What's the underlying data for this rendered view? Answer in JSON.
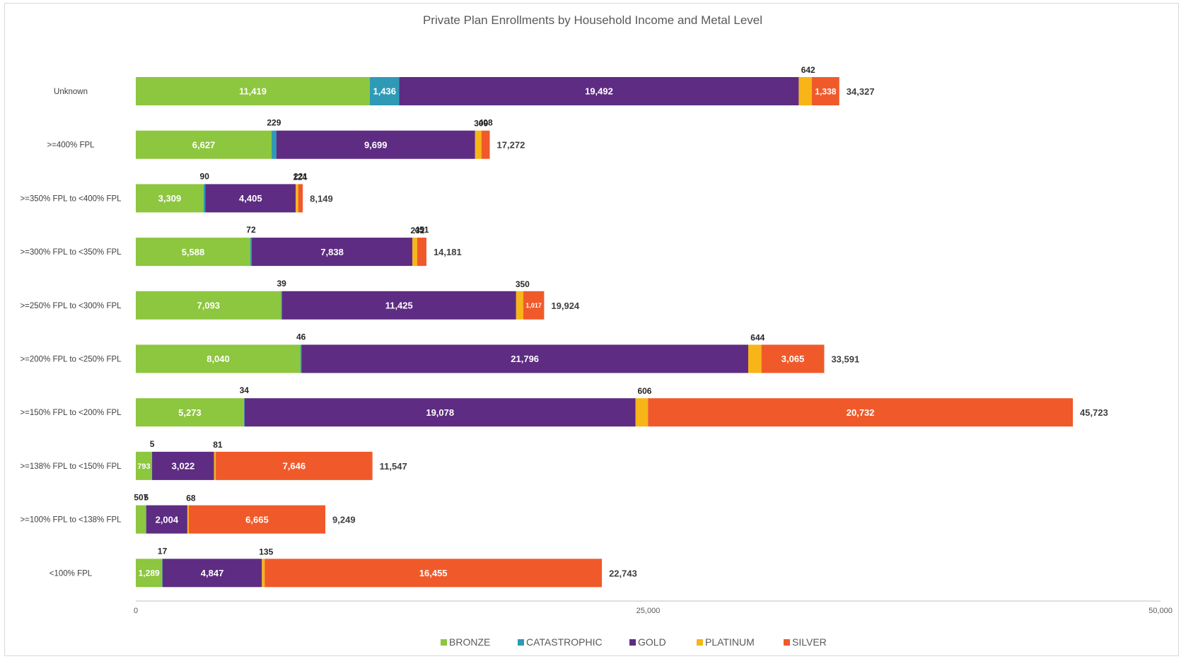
{
  "chart_data": {
    "type": "bar",
    "orientation": "horizontal",
    "stacked": true,
    "title": "Private Plan Enrollments by Household Income and Metal Level",
    "categories": [
      "Unknown",
      ">=400% FPL",
      ">=350% FPL to <400% FPL",
      ">=300% FPL to <350% FPL",
      ">=250% FPL to <300% FPL",
      ">=200% FPL to <250% FPL",
      ">=150% FPL to <200% FPL",
      ">=138% FPL to <150% FPL",
      ">=100% FPL to <138% FPL",
      "<100% FPL"
    ],
    "series": [
      {
        "name": "BRONZE",
        "color": "#8DC63F",
        "values": [
          11419,
          6627,
          3309,
          5588,
          7093,
          8040,
          5273,
          793,
          507,
          1289
        ],
        "labels": [
          "11,419",
          "6,627",
          "3,309",
          "5,588",
          "7,093",
          "8,040",
          "5,273",
          "793",
          "507",
          "1,289"
        ]
      },
      {
        "name": "CATASTROPHIC",
        "color": "#2E9AB5",
        "values": [
          1436,
          229,
          90,
          72,
          39,
          46,
          34,
          5,
          5,
          17
        ],
        "labels": [
          "1,436",
          "229",
          "90",
          "72",
          "39",
          "46",
          "34",
          "5",
          "5",
          "17"
        ]
      },
      {
        "name": "GOLD",
        "color": "#5E2C82",
        "values": [
          19492,
          9699,
          4405,
          7838,
          11425,
          21796,
          19078,
          3022,
          2004,
          4847
        ],
        "labels": [
          "19,492",
          "9,699",
          "4,405",
          "7,838",
          "11,425",
          "21,796",
          "19,078",
          "3,022",
          "2,004",
          "4,847"
        ]
      },
      {
        "name": "PLATINUM",
        "color": "#F7B517",
        "values": [
          642,
          309,
          124,
          232,
          350,
          644,
          606,
          81,
          68,
          135
        ],
        "labels": [
          "642",
          "309",
          "124",
          "232",
          "350",
          "644",
          "606",
          "81",
          "68",
          "135"
        ]
      },
      {
        "name": "SILVER",
        "color": "#F05A2A",
        "values": [
          1338,
          408,
          221,
          451,
          1017,
          3065,
          20732,
          7646,
          6665,
          16455
        ],
        "labels": [
          "1,338",
          "408",
          "221",
          "451",
          "1,017",
          "3,065",
          "20,732",
          "7,646",
          "6,665",
          "16,455"
        ]
      }
    ],
    "totals": [
      34327,
      17272,
      8149,
      14181,
      19924,
      33591,
      45723,
      11547,
      9249,
      22743
    ],
    "total_labels": [
      "34,327",
      "17,272",
      "8,149",
      "14,181",
      "19,924",
      "33,591",
      "45,723",
      "11,547",
      "9,249",
      "22,743"
    ],
    "xlim": [
      0,
      50000
    ],
    "xticks": [
      0,
      25000,
      50000
    ],
    "xtick_labels": [
      "0",
      "25,000",
      "50,000"
    ],
    "grid": false,
    "legend_position": "bottom"
  }
}
